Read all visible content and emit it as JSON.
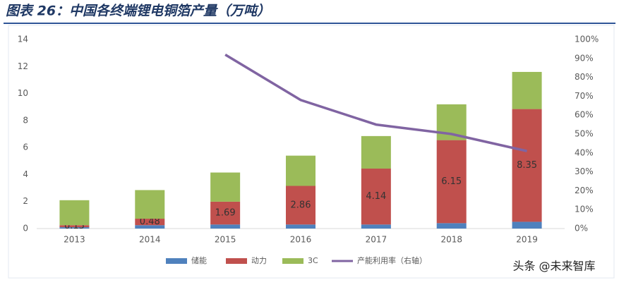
{
  "chart_data": {
    "type": "bar",
    "title": "图表 26：中国各终端锂电铜箔产量（万吨）",
    "watermark": "头条 @未来智库",
    "categories": [
      "2013",
      "2014",
      "2015",
      "2016",
      "2017",
      "2018",
      "2019"
    ],
    "series": [
      {
        "name": "储能",
        "color": "#4f81bd",
        "values": [
          0.1,
          0.25,
          0.3,
          0.3,
          0.3,
          0.4,
          0.5
        ]
      },
      {
        "name": "动力",
        "color": "#c0504d",
        "values": [
          0.15,
          0.48,
          1.69,
          2.86,
          4.14,
          6.15,
          8.35
        ],
        "show_labels": true
      },
      {
        "name": "3C",
        "color": "#9bbb59",
        "values": [
          1.85,
          2.12,
          2.16,
          2.24,
          2.41,
          2.65,
          2.75
        ]
      },
      {
        "name": "产能利用率（右轴）",
        "color": "#8064a2",
        "type": "line",
        "axis": "y2",
        "values": [
          null,
          null,
          92,
          68,
          55,
          50,
          41
        ]
      }
    ],
    "ylim": [
      0,
      14
    ],
    "yticks": [
      0,
      2,
      4,
      6,
      8,
      10,
      12,
      14
    ],
    "y2lim": [
      0,
      100
    ],
    "y2ticks": [
      {
        "value": 0,
        "label": "0%"
      },
      {
        "value": 10,
        "label": "10%"
      },
      {
        "value": 20,
        "label": "20%"
      },
      {
        "value": 30,
        "label": "30%"
      },
      {
        "value": 40,
        "label": "40%"
      },
      {
        "value": 50,
        "label": "50%"
      },
      {
        "value": 60,
        "label": "60%"
      },
      {
        "value": 70,
        "label": "70%"
      },
      {
        "value": 80,
        "label": "80%"
      },
      {
        "value": 90,
        "label": "90%"
      },
      {
        "value": 100,
        "label": "100%"
      }
    ],
    "grid": false,
    "legend": "bottom"
  }
}
